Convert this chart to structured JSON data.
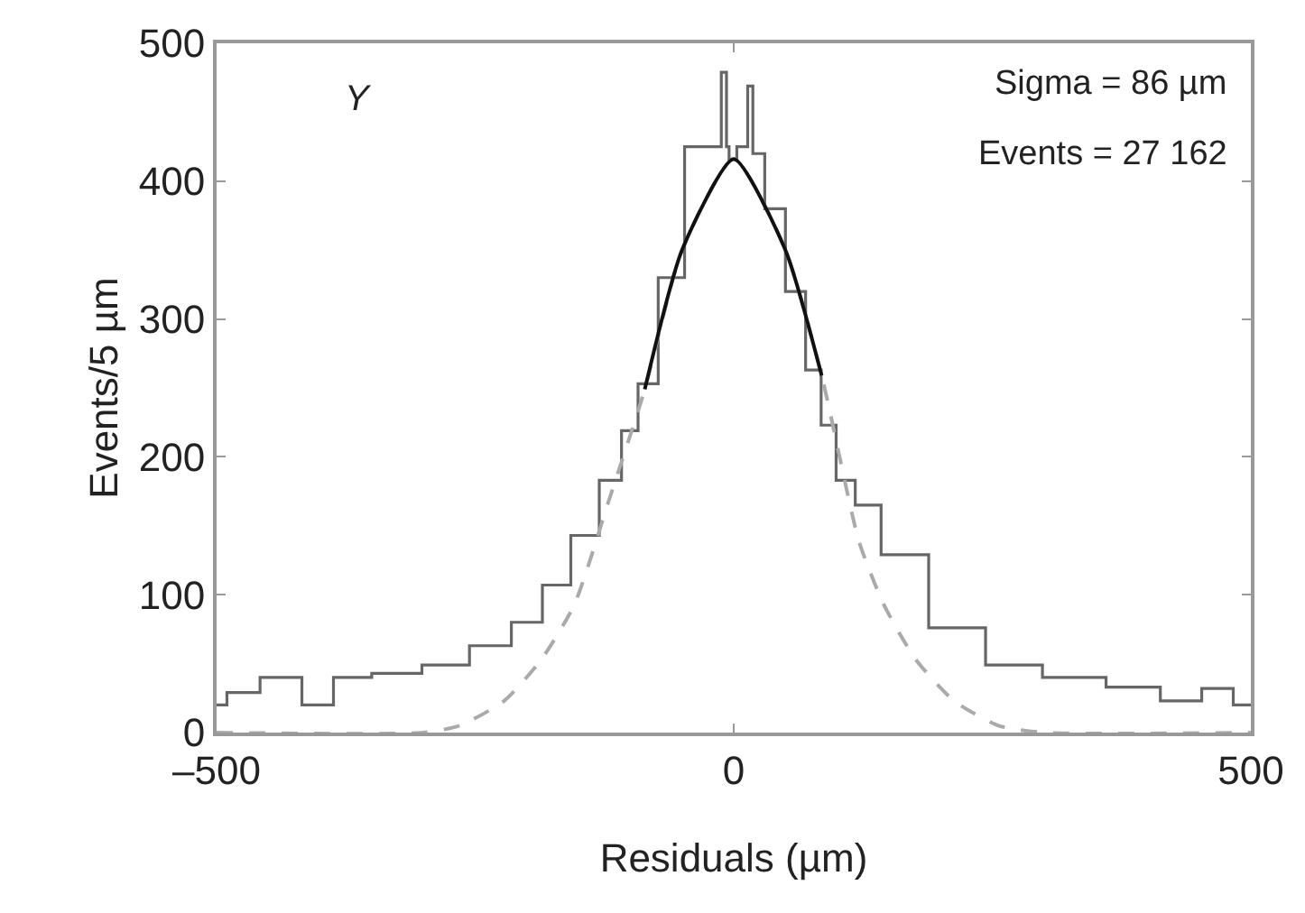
{
  "chart_data": {
    "type": "line",
    "xlabel": "Residuals (µm)",
    "ylabel": "Events/5 µm",
    "xlim": [
      -500,
      500
    ],
    "xticks": [
      {
        "value": -500,
        "label": "–500"
      },
      0,
      500
    ],
    "ylim": [
      0,
      500
    ],
    "yticks": [
      0,
      100,
      200,
      300,
      400,
      500
    ],
    "grid": false,
    "marker": "none",
    "annotations": [
      "Y",
      "Sigma = 86 µm",
      "Events = 27 162"
    ],
    "series": [
      {
        "type": "step",
        "color": "#666666",
        "line_style": "solid",
        "x": [
          -500,
          -480,
          -436,
          -399,
          -375,
          -325,
          -278,
          -233,
          -197,
          -173,
          -142,
          -118,
          -99,
          -86,
          -60,
          -35,
          -15,
          -9,
          -5,
          -4,
          10,
          17,
          20,
          40,
          60,
          79,
          90,
          108,
          127,
          158,
          219,
          268,
          329,
          391,
          434,
          471,
          495,
          500
        ],
        "values": [
          20,
          29,
          40,
          20,
          40,
          43,
          49,
          63,
          80,
          107,
          143,
          183,
          219,
          253,
          330,
          425,
          425,
          479,
          425,
          416,
          425,
          469,
          420,
          380,
          320,
          263,
          223,
          183,
          165,
          129,
          76,
          49,
          40,
          33,
          23,
          32,
          20,
          20
        ]
      },
      {
        "color": "#aaaaaa",
        "line_style": "dashed",
        "x": [
          -500,
          -300,
          -265,
          -222,
          -186,
          -154,
          -120,
          -86,
          -50,
          0,
          50,
          85,
          121,
          145,
          176,
          213,
          256,
          300,
          500
        ],
        "values": [
          0,
          0,
          5,
          23,
          53,
          93,
          170,
          249,
          350,
          416,
          350,
          259,
          139,
          93,
          53,
          23,
          5,
          0,
          0
        ]
      },
      {
        "color": "#111111",
        "line_style": "solid",
        "x": [
          -86,
          -50,
          0,
          50,
          85
        ],
        "values": [
          249,
          350,
          416,
          350,
          259
        ]
      }
    ]
  }
}
